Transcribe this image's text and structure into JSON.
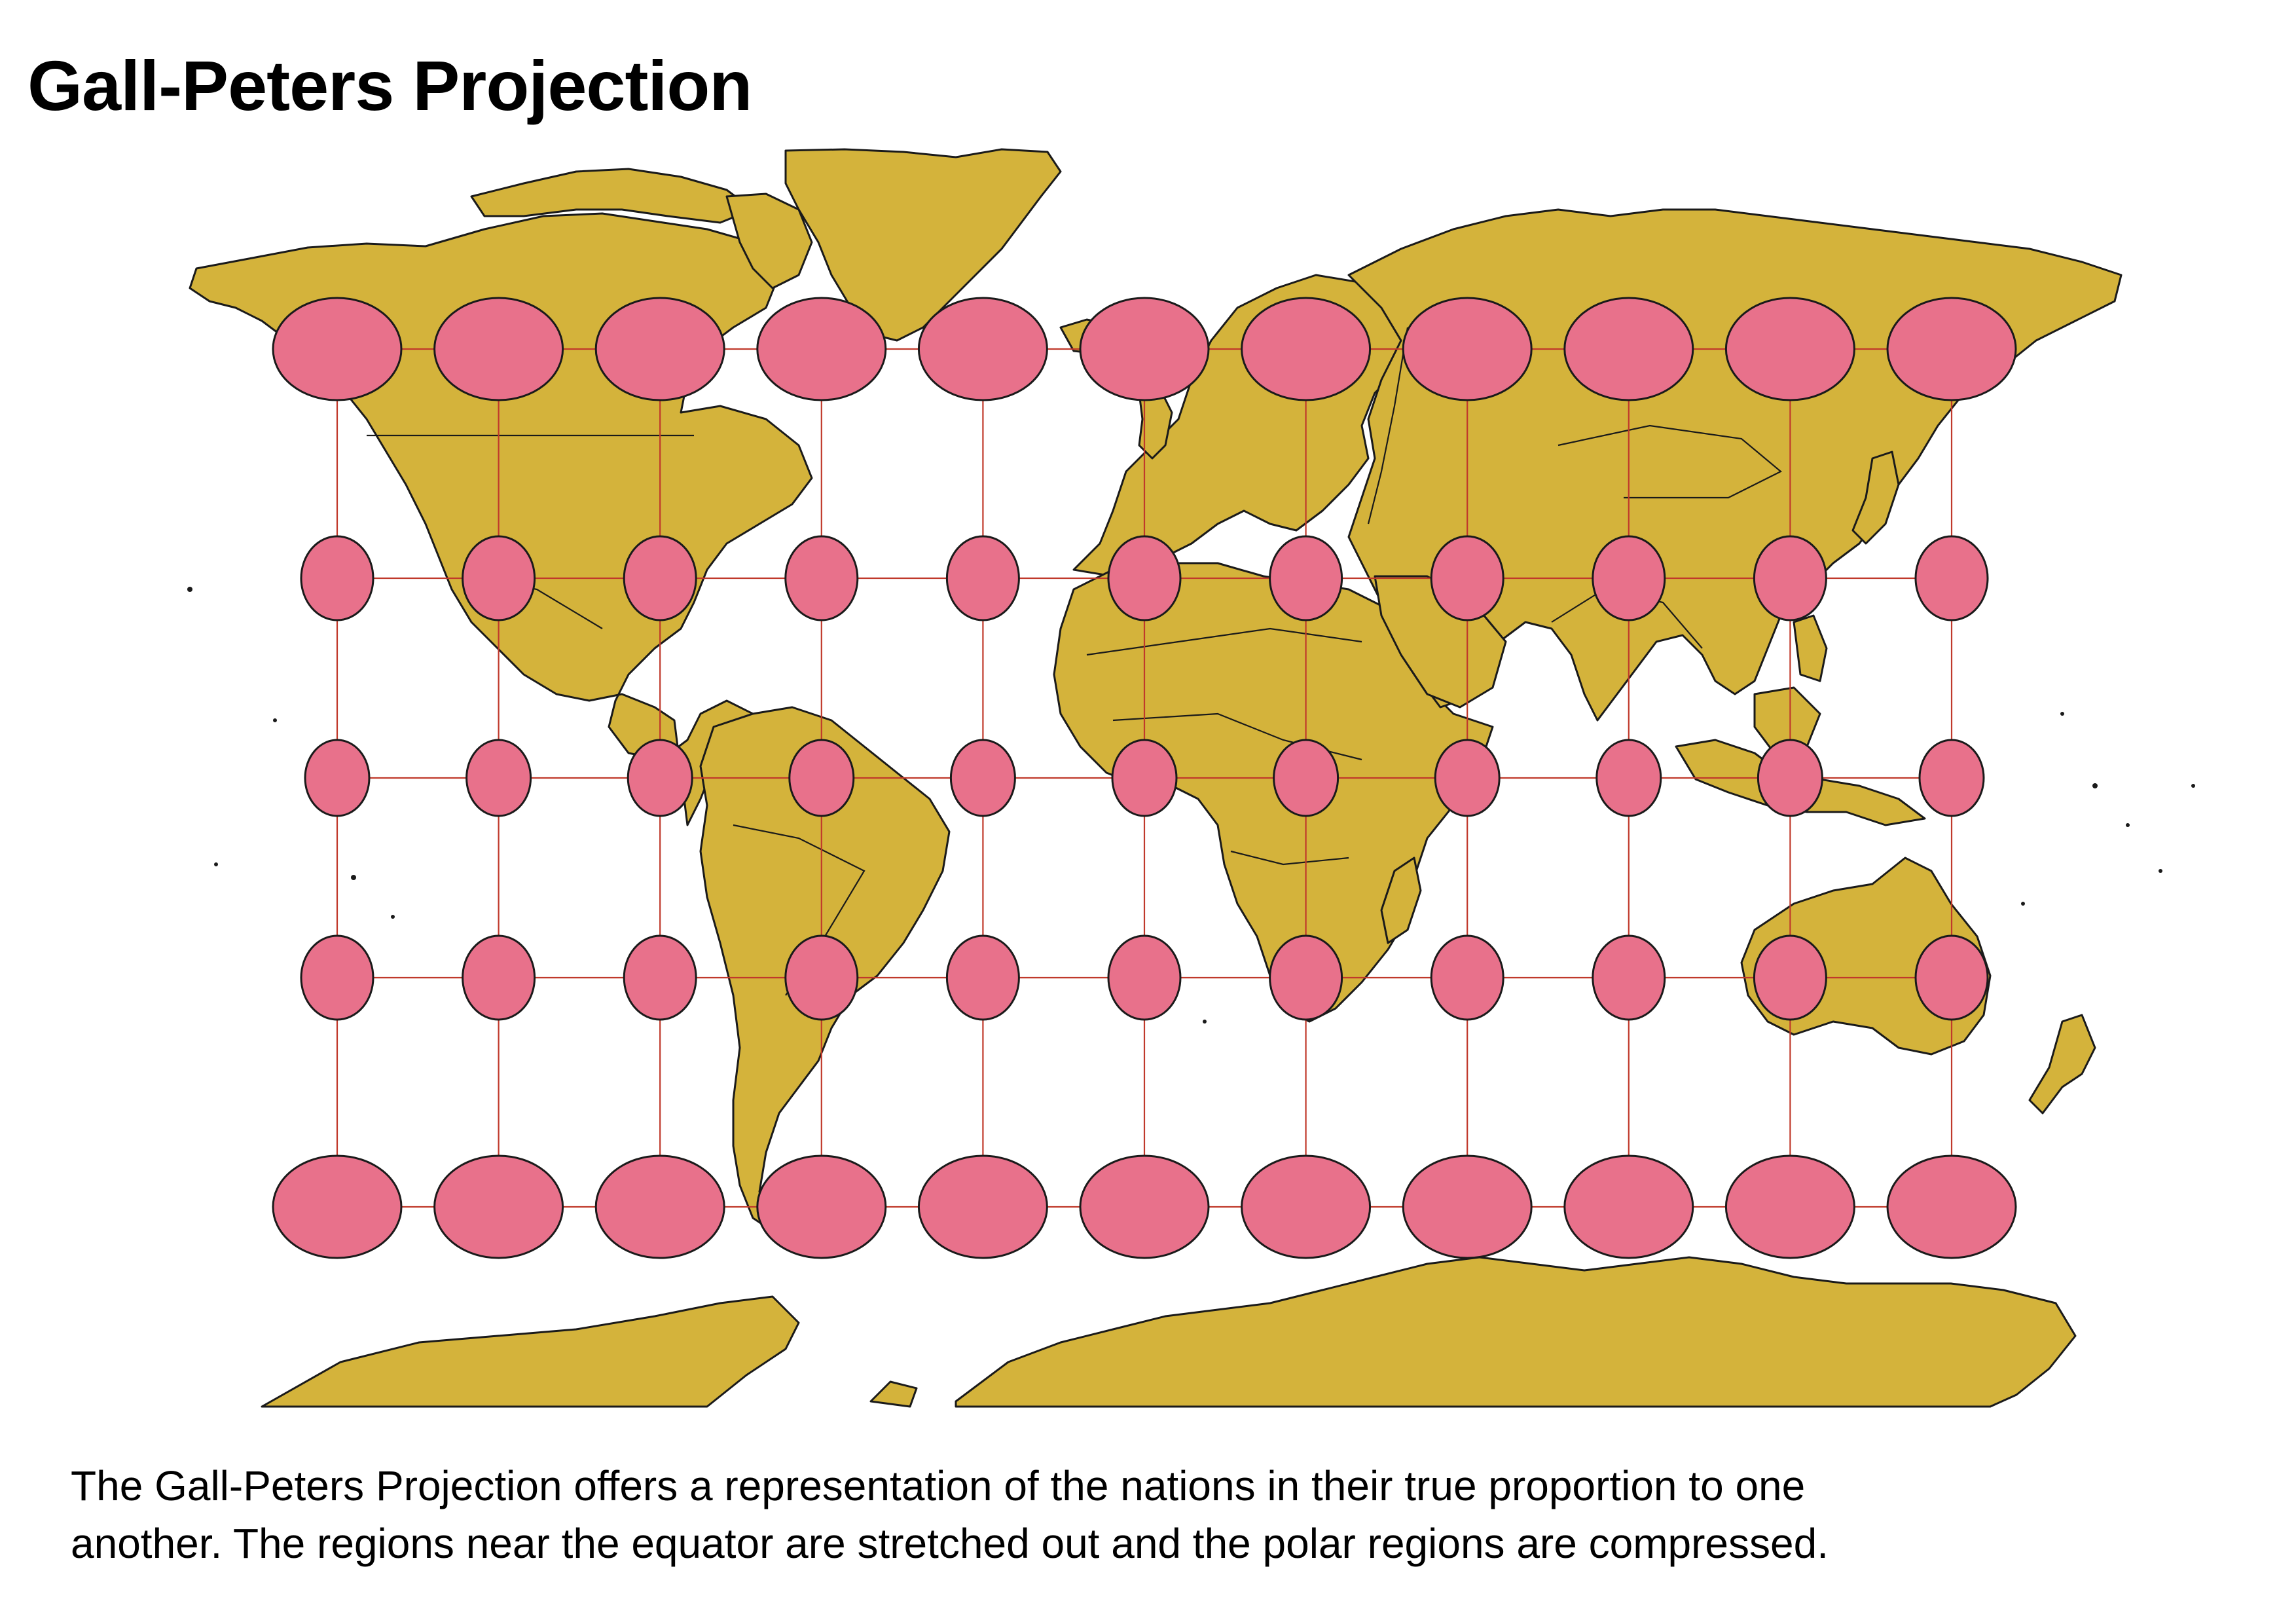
{
  "header": {
    "title": "Gall-Peters Projection"
  },
  "caption": {
    "line1": "The Gall-Peters Projection offers a representation of the nations in their true proportion to one",
    "line2": "another. The regions near the equator are stretched out and the polar regions are compressed."
  },
  "map": {
    "projection": "Gall-Peters",
    "colors": {
      "land": "#d4b33b",
      "coastline": "#1a1a1a",
      "graticule": "#c0392b",
      "indicatrix": "#e8718b",
      "background": "#ffffff"
    },
    "tissot": {
      "columns": 11,
      "rows": 5
    }
  }
}
